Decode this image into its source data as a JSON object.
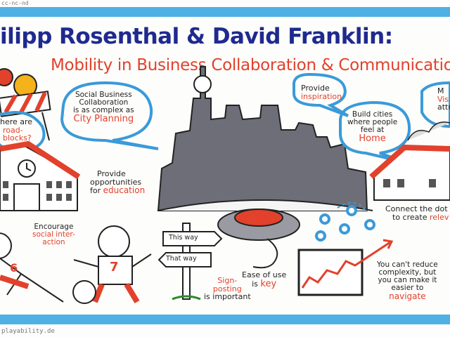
{
  "corner_text": "cc-nc-nd",
  "footer_text": "playability.de",
  "title": "ilipp Rosenthal & David Franklin:",
  "subtitle": "Mobility in Business Collaboration & Communicatio",
  "notes": {
    "roadblocks_1": "here are",
    "roadblocks_2": "road-",
    "roadblocks_3": "blocks?",
    "social_1": "Social Business",
    "social_2": "Collaboration",
    "social_3": "is as complex as",
    "social_4": "City Planning",
    "inspire_1": "Provide",
    "inspire_2": "inspiration",
    "build_1": "Build cities",
    "build_2": "where people",
    "build_3": "feel at",
    "build_4": "Home",
    "vis_1": "M",
    "vis_2": "Vis",
    "vis_3": "attr",
    "opp_1": "Provide",
    "opp_2": "opportunities",
    "opp_3": "for",
    "opp_4": "education",
    "enc_1": "Encourage",
    "enc_2": "social inter-",
    "enc_3": "action",
    "sign_a": "This way",
    "sign_b": "That way",
    "signpost_1": "Sign-",
    "signpost_2": "posting",
    "signpost_3": "is important",
    "ease_1": "Ease of use",
    "ease_2": "is",
    "ease_3": "key",
    "dots_1": "Connect the dot",
    "dots_2": "to create",
    "dots_3": "relev",
    "complex_1": "You can't reduce",
    "complex_2": "complexity, but",
    "complex_3": "you can make it",
    "complex_4": "easier to",
    "complex_5": "navigate",
    "jersey_number": "7",
    "jersey_number_2": "6"
  },
  "colors": {
    "frame_blue": "#4fb1e3",
    "title_blue": "#1f2a8f",
    "accent_red": "#e2412c",
    "speech_blue": "#3a9ad9",
    "city_gray": "#6e6e78"
  }
}
